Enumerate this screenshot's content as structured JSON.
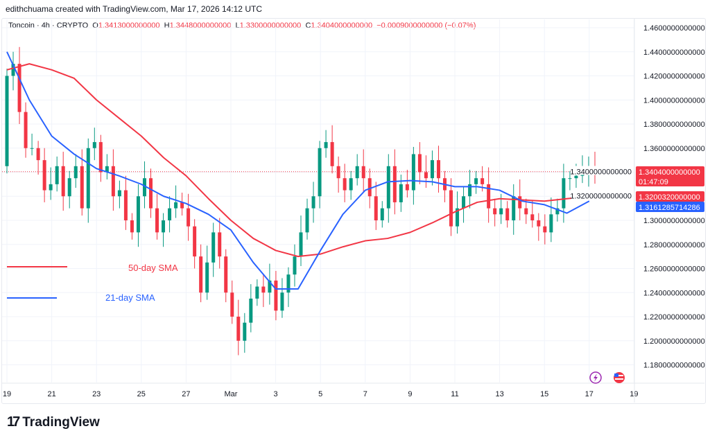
{
  "credit": "edithchuama created with TradingView.com, Mar 17, 2026 14:12 UTC",
  "header": {
    "symbol": "Toncoin · 4h · CRYPTO",
    "o_label": "O",
    "o": "1.3413000000000",
    "h_label": "H",
    "h": "1.3448000000000",
    "l_label": "L",
    "l": "1.3300000000000",
    "c_label": "C",
    "c": "1.3404000000000",
    "change": "−0.0009000000000 (−0.07%)"
  },
  "badges": {
    "price": "1.3404000000000",
    "countdown": "01:47:09",
    "sma50": "1.3200320000000",
    "sma21": "1.3161285714286"
  },
  "annotations": {
    "sma50": "50-day SMA",
    "sma21": "21-day SMA"
  },
  "logo": "TradingView",
  "icons": [
    "lightning-event-icon",
    "us-flag-event-icon"
  ],
  "colors": {
    "up": "#089981",
    "down": "#f23645",
    "sma50": "#f23645",
    "sma21": "#2962ff"
  },
  "chart_data": {
    "type": "candlestick",
    "interval": "4h",
    "x_ticks": [
      "19",
      "21",
      "23",
      "25",
      "27",
      "Mar",
      "3",
      "5",
      "7",
      "9",
      "11",
      "13",
      "15",
      "17",
      "19"
    ],
    "y_ticks": [
      "1.4600000000000",
      "1.4400000000000",
      "1.4200000000000",
      "1.4000000000000",
      "1.3800000000000",
      "1.3600000000000",
      "1.3400000000000",
      "1.3200000000000",
      "1.3000000000000",
      "1.2800000000000",
      "1.2600000000000",
      "1.2400000000000",
      "1.2200000000000",
      "1.2000000000000",
      "1.1800000000000"
    ],
    "ylim": [
      1.18,
      1.46
    ],
    "grid": true,
    "first_open": 1.345,
    "closes": [
      1.42,
      1.43,
      1.39,
      1.36,
      1.36,
      1.35,
      1.325,
      1.33,
      1.345,
      1.32,
      1.335,
      1.345,
      1.31,
      1.36,
      1.365,
      1.34,
      1.345,
      1.32,
      1.325,
      1.3,
      1.29,
      1.32,
      1.335,
      1.31,
      1.29,
      1.3,
      1.31,
      1.315,
      1.31,
      1.295,
      1.27,
      1.24,
      1.265,
      1.29,
      1.27,
      1.24,
      1.22,
      1.2,
      1.215,
      1.235,
      1.245,
      1.24,
      1.25,
      1.225,
      1.24,
      1.255,
      1.27,
      1.29,
      1.31,
      1.32,
      1.36,
      1.365,
      1.345,
      1.335,
      1.325,
      1.335,
      1.345,
      1.335,
      1.32,
      1.3,
      1.31,
      1.345,
      1.315,
      1.33,
      1.325,
      1.355,
      1.34,
      1.335,
      1.35,
      1.335,
      1.325,
      1.295,
      1.31,
      1.32,
      1.33,
      1.335,
      1.33,
      1.31,
      1.305,
      1.31,
      1.3,
      1.32,
      1.31,
      1.305,
      1.3,
      1.295,
      1.29,
      1.305,
      1.31,
      1.335,
      1.335,
      1.337,
      1.34,
      1.345,
      1.3404
    ],
    "sma_dates": [
      "Feb 19",
      "Feb 20",
      "Feb 21",
      "Feb 22",
      "Feb 23",
      "Feb 24",
      "Feb 25",
      "Feb 26",
      "Feb 27",
      "Feb 28",
      "Mar 1",
      "Mar 2",
      "Mar 3",
      "Mar 4",
      "Mar 5",
      "Mar 6",
      "Mar 7",
      "Mar 8",
      "Mar 9",
      "Mar 10",
      "Mar 11",
      "Mar 12",
      "Mar 13",
      "Mar 14",
      "Mar 15",
      "Mar 16",
      "Mar 17"
    ],
    "series": [
      {
        "name": "50-day SMA",
        "values": [
          1.425,
          1.43,
          1.425,
          1.418,
          1.4,
          1.385,
          1.37,
          1.352,
          1.337,
          1.318,
          1.3,
          1.285,
          1.275,
          1.27,
          1.272,
          1.278,
          1.283,
          1.285,
          1.29,
          1.298,
          1.307,
          1.315,
          1.318,
          1.317,
          1.316,
          1.318,
          1.32
        ]
      },
      {
        "name": "21-day SMA",
        "values": [
          1.44,
          1.4,
          1.37,
          1.355,
          1.343,
          1.337,
          1.33,
          1.32,
          1.314,
          1.305,
          1.292,
          1.265,
          1.243,
          1.243,
          1.275,
          1.305,
          1.325,
          1.332,
          1.333,
          1.332,
          1.328,
          1.328,
          1.325,
          1.316,
          1.313,
          1.306,
          1.316
        ]
      }
    ]
  }
}
